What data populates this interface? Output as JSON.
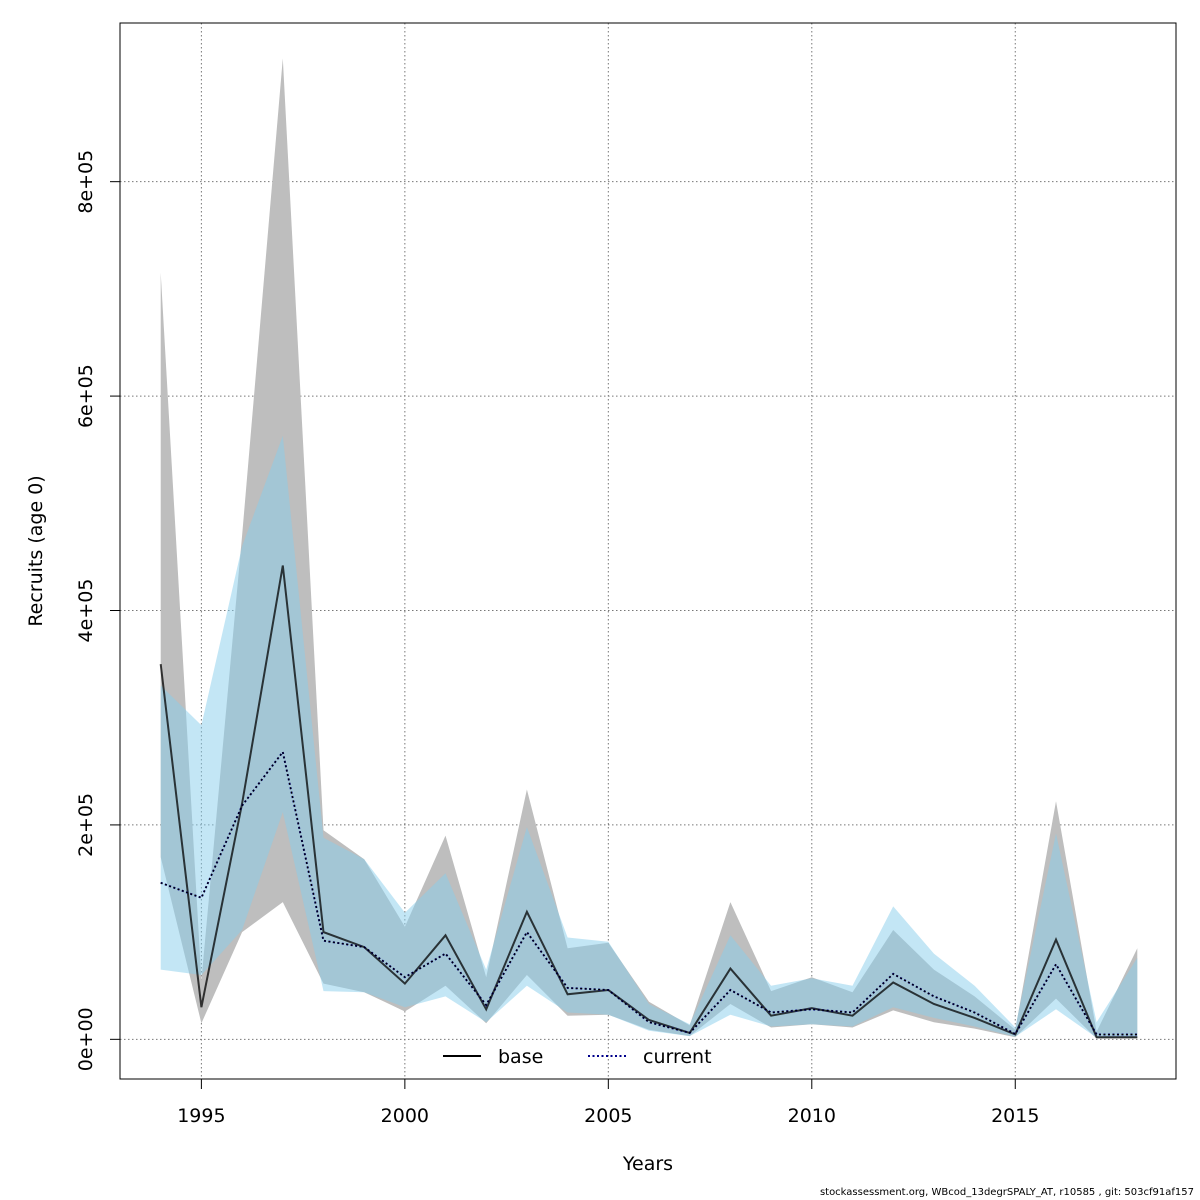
{
  "chart_data": {
    "type": "area",
    "xlabel": "Years",
    "ylabel": "Recruits (age 0)",
    "xlim": [
      1993.0,
      2018.95
    ],
    "ylim": [
      -37000,
      948000
    ],
    "x_ticks": [
      1995,
      2000,
      2005,
      2010,
      2015
    ],
    "x_tick_labels": [
      "1995",
      "2000",
      "2005",
      "2010",
      "2015"
    ],
    "y_ticks": [
      0,
      200000,
      400000,
      600000,
      800000
    ],
    "y_tick_labels": [
      "0e+00",
      "2e+05",
      "4e+05",
      "6e+05",
      "8e+05"
    ],
    "grid": true,
    "legend_position": "bottom",
    "colors": {
      "base_band": "#bebebe",
      "current_band": "#87ceeb",
      "overlap_band": "#a6c3d2",
      "base_line": "#000000",
      "current_line": "#00008b"
    },
    "years": [
      1994,
      1995,
      1996,
      1997,
      1998,
      1999,
      2000,
      2001,
      2002,
      2003,
      2004,
      2005,
      2006,
      2007,
      2008,
      2009,
      2010,
      2011,
      2012,
      2013,
      2014,
      2015,
      2016,
      2017,
      2018
    ],
    "series": [
      {
        "name": "base",
        "line_style": "solid",
        "values": [
          350000,
          30000,
          220000,
          442000,
          100000,
          86000,
          52000,
          97000,
          28000,
          119000,
          42000,
          46000,
          18000,
          6000,
          66000,
          22000,
          29000,
          22000,
          53000,
          33000,
          20000,
          4500,
          93000,
          2000,
          2000
        ],
        "lower": [
          170000,
          15000,
          100000,
          128000,
          52000,
          44000,
          26000,
          50000,
          15000,
          60000,
          22000,
          23000,
          9000,
          3000,
          33000,
          11000,
          14000,
          11000,
          27000,
          16000,
          10000,
          2000,
          38000,
          700,
          800
        ],
        "upper": [
          715000,
          55000,
          470000,
          915000,
          195000,
          168000,
          105000,
          190000,
          58000,
          233000,
          85000,
          90000,
          35000,
          13000,
          128000,
          45000,
          58000,
          44000,
          102000,
          65000,
          40000,
          9000,
          222000,
          7000,
          85000
        ]
      },
      {
        "name": "current",
        "line_style": "dotted",
        "values": [
          146000,
          132000,
          218000,
          268000,
          92000,
          86000,
          58000,
          80000,
          32000,
          100000,
          48000,
          46000,
          16000,
          6000,
          46000,
          25000,
          28000,
          25000,
          61000,
          40000,
          25000,
          5000,
          70000,
          4500,
          4500
        ],
        "lower": [
          65000,
          60000,
          102000,
          212000,
          45000,
          44000,
          30000,
          40000,
          16000,
          50000,
          25000,
          23000,
          8000,
          3000,
          23000,
          12000,
          14000,
          12000,
          30000,
          20000,
          12000,
          2500,
          28000,
          1500,
          1500
        ],
        "upper": [
          330000,
          293000,
          460000,
          563000,
          188000,
          168000,
          118000,
          155000,
          65000,
          198000,
          95000,
          91000,
          33000,
          14000,
          97000,
          50000,
          57000,
          50000,
          124000,
          80000,
          50000,
          11000,
          192000,
          16000,
          76000
        ]
      }
    ]
  },
  "legend": {
    "base": "base",
    "current": "current"
  },
  "footnote": "stockassessment.org, WBcod_13degrSPALY_AT, r10585 , git: 503cf91af157"
}
